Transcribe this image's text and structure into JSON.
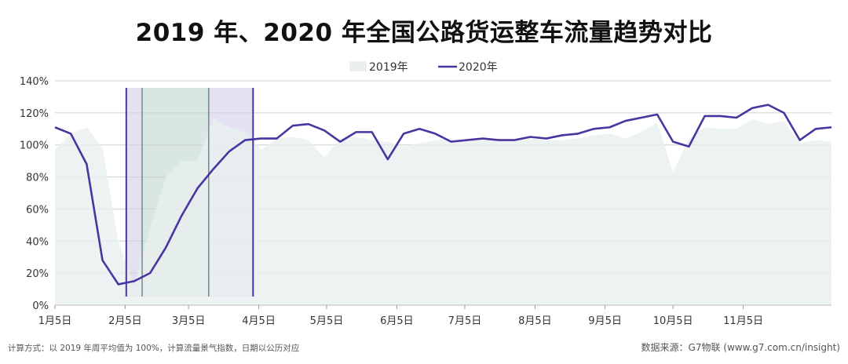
{
  "title": "2019 年、2020 年全国公路货运整车流量趋势对比",
  "footnote_left": "计算方式：以 2019 年周平均值为 100%，计算流量景气指数，日期以公历对应",
  "footnote_right": "数据来源：G7物联 (www.g7.com.cn/insight)",
  "colors": {
    "series_2019": "#e9f0ef",
    "series_2020": "#4a35a0",
    "band_purple": "#e6e0f3",
    "band_teal": "#d8e6e4",
    "band_purple_border": "#4a35a0",
    "band_teal_border": "#6d8d8a",
    "grid": "#d0d0d0"
  },
  "chart_data": {
    "type": "line",
    "ylim": [
      0,
      140
    ],
    "yticks": [
      "0%",
      "20%",
      "40%",
      "60%",
      "80%",
      "100%",
      "120%",
      "140%"
    ],
    "ytick_values": [
      0,
      20,
      40,
      60,
      80,
      100,
      120,
      140
    ],
    "xlim": [
      0,
      49
    ],
    "xticks": [
      "1月5日",
      "2月5日",
      "3月5日",
      "4月5日",
      "5月5日",
      "6月5日",
      "7月5日",
      "8月5日",
      "9月5日",
      "10月5日",
      "11月5日"
    ],
    "xtick_positions": [
      0,
      4.43,
      8.43,
      12.86,
      17.14,
      21.57,
      25.86,
      30.29,
      34.71,
      39.0,
      43.43
    ],
    "legend": [
      "2019年",
      "2020年"
    ],
    "grid": true,
    "bands": [
      {
        "type": "purple",
        "from": 4.5,
        "to": 5.5
      },
      {
        "type": "teal",
        "from": 5.5,
        "to": 9.7
      },
      {
        "type": "purple",
        "from": 9.7,
        "to": 12.5
      }
    ],
    "series": [
      {
        "name": "2019年",
        "style": "area",
        "x": [
          0,
          1,
          2,
          3,
          4,
          5,
          6,
          7,
          8,
          9,
          10,
          11,
          12,
          13,
          14,
          15,
          16,
          17,
          18,
          19,
          20,
          21,
          22,
          23,
          24,
          25,
          26,
          27,
          28,
          29,
          30,
          31,
          32,
          33,
          34,
          35,
          36,
          37,
          38,
          39,
          40,
          41,
          42,
          43,
          44,
          45,
          46,
          47,
          48,
          49
        ],
        "values": [
          97,
          107,
          111,
          98,
          40,
          12,
          48,
          80,
          90,
          90,
          117,
          111,
          108,
          97,
          104,
          105,
          103,
          92,
          104,
          105,
          103,
          102,
          99,
          101,
          103,
          104,
          103,
          103,
          104,
          102,
          104,
          103,
          103,
          104,
          106,
          107,
          104,
          108,
          114,
          83,
          104,
          111,
          110,
          110,
          116,
          113,
          115,
          101,
          103,
          102
        ]
      },
      {
        "name": "2020年",
        "style": "line",
        "x": [
          0,
          1,
          2,
          3,
          4,
          5,
          6,
          7,
          8,
          9,
          10,
          11,
          12,
          13,
          14,
          15,
          16,
          17,
          18,
          19,
          20,
          21,
          22,
          23,
          24,
          25,
          26,
          27,
          28,
          29,
          30,
          31,
          32,
          33,
          34,
          35,
          36,
          37,
          38,
          39,
          40,
          41,
          42,
          43,
          44,
          45,
          46,
          47,
          48,
          49
        ],
        "values": [
          111,
          107,
          88,
          28,
          13,
          15,
          20,
          36,
          56,
          73,
          85,
          96,
          103,
          104,
          104,
          112,
          113,
          109,
          102,
          108,
          108,
          91,
          107,
          110,
          107,
          102,
          103,
          104,
          103,
          103,
          105,
          104,
          106,
          107,
          110,
          111,
          115,
          117,
          119,
          102,
          99,
          118,
          118,
          117,
          123,
          125,
          120,
          103,
          110,
          111
        ]
      }
    ]
  }
}
